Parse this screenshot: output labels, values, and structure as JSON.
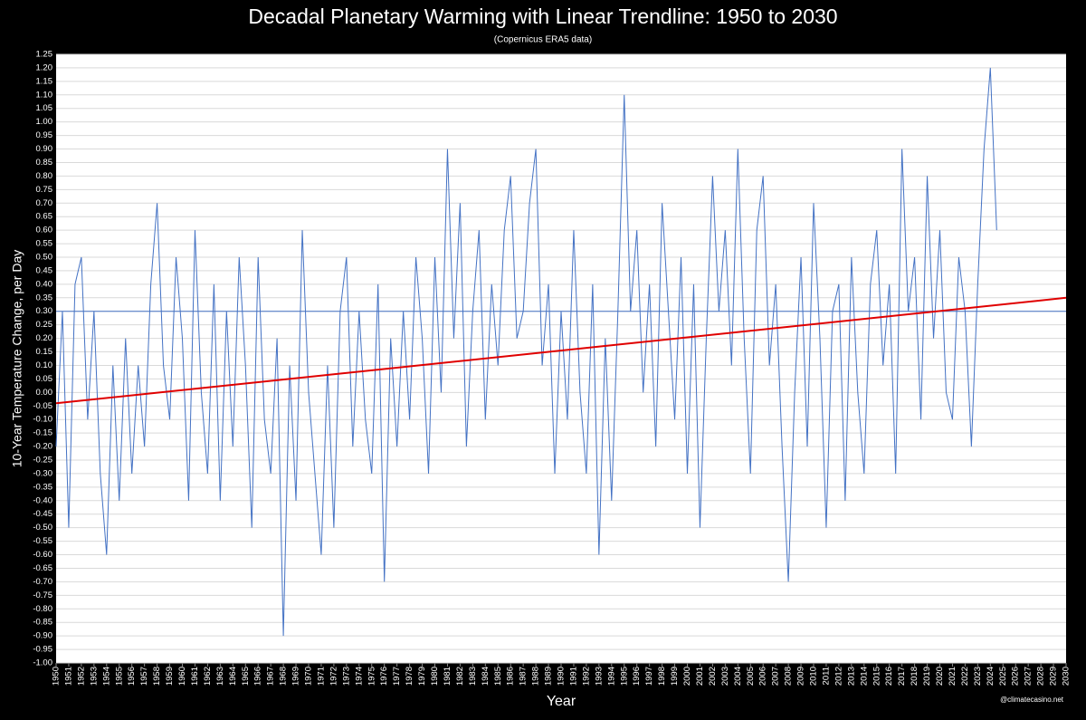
{
  "chart_data": {
    "type": "line",
    "title": "Decadal Planetary Warming with Linear Trendline: 1950 to 2030",
    "subtitle": "(Copernicus ERA5 data)",
    "x_label": "Year",
    "y_label": "10-Year Temperature Change, per Day",
    "credit": "@climatecasino.net",
    "grid": true,
    "xlim": [
      1950,
      2030
    ],
    "ylim": [
      -1.0,
      1.25
    ],
    "xticks": [
      1950,
      1951,
      1952,
      1953,
      1954,
      1955,
      1956,
      1957,
      1958,
      1959,
      1960,
      1961,
      1962,
      1963,
      1964,
      1965,
      1966,
      1967,
      1968,
      1969,
      1970,
      1971,
      1972,
      1973,
      1974,
      1975,
      1976,
      1977,
      1978,
      1979,
      1980,
      1981,
      1982,
      1983,
      1984,
      1985,
      1986,
      1987,
      1988,
      1989,
      1990,
      1991,
      1992,
      1993,
      1994,
      1995,
      1996,
      1997,
      1998,
      1999,
      2000,
      2001,
      2002,
      2003,
      2004,
      2005,
      2006,
      2007,
      2008,
      2009,
      2010,
      2011,
      2012,
      2013,
      2014,
      2015,
      2016,
      2017,
      2018,
      2019,
      2020,
      2021,
      2022,
      2023,
      2024,
      2025,
      2026,
      2027,
      2028,
      2029,
      2030
    ],
    "yticks": [
      {
        "value": -1.0,
        "label": "-1.00"
      },
      {
        "value": -0.95,
        "label": "-0.95"
      },
      {
        "value": -0.9,
        "label": "-0.90"
      },
      {
        "value": -0.85,
        "label": "-0.85"
      },
      {
        "value": -0.8,
        "label": "-0.80"
      },
      {
        "value": -0.75,
        "label": "-0.75"
      },
      {
        "value": -0.7,
        "label": "-0.70"
      },
      {
        "value": -0.65,
        "label": "-0.65"
      },
      {
        "value": -0.6,
        "label": "-0.60"
      },
      {
        "value": -0.55,
        "label": "-0.55"
      },
      {
        "value": -0.5,
        "label": "-0.50"
      },
      {
        "value": -0.45,
        "label": "-0.45"
      },
      {
        "value": -0.4,
        "label": "-0.40"
      },
      {
        "value": -0.35,
        "label": "-0.35"
      },
      {
        "value": -0.3,
        "label": "-0.30"
      },
      {
        "value": -0.25,
        "label": "-0.25"
      },
      {
        "value": -0.2,
        "label": "-0.20"
      },
      {
        "value": -0.15,
        "label": "-0.15"
      },
      {
        "value": -0.1,
        "label": "-0.10"
      },
      {
        "value": -0.05,
        "label": "-0.05"
      },
      {
        "value": 0,
        "label": "0.00"
      },
      {
        "value": 0.05,
        "label": "0.05"
      },
      {
        "value": 0.1,
        "label": "0.10"
      },
      {
        "value": 0.15,
        "label": "0.15"
      },
      {
        "value": 0.2,
        "label": "0.20"
      },
      {
        "value": 0.25,
        "label": "0.25"
      },
      {
        "value": 0.3,
        "label": "0.30"
      },
      {
        "value": 0.35,
        "label": "0.35"
      },
      {
        "value": 0.4,
        "label": "0.40"
      },
      {
        "value": 0.45,
        "label": "0.45"
      },
      {
        "value": 0.5,
        "label": "0.50"
      },
      {
        "value": 0.55,
        "label": "0.55"
      },
      {
        "value": 0.6,
        "label": "0.60"
      },
      {
        "value": 0.65,
        "label": "0.65"
      },
      {
        "value": 0.7,
        "label": "0.70"
      },
      {
        "value": 0.75,
        "label": "0.75"
      },
      {
        "value": 0.8,
        "label": "0.80"
      },
      {
        "value": 0.85,
        "label": "0.85"
      },
      {
        "value": 0.9,
        "label": "0.90"
      },
      {
        "value": 0.95,
        "label": "0.95"
      },
      {
        "value": 1.0,
        "label": "1.00"
      },
      {
        "value": 1.05,
        "label": "1.05"
      },
      {
        "value": 1.1,
        "label": "1.10"
      },
      {
        "value": 1.15,
        "label": "1.15"
      },
      {
        "value": 1.2,
        "label": "1.20"
      },
      {
        "value": 1.25,
        "label": "1.25"
      }
    ],
    "hlines": [
      {
        "value": 0.3,
        "color": "#4472c4"
      }
    ],
    "series": [
      {
        "color": "#4472c4",
        "x": [
          1950,
          1950.5,
          1951,
          1951.5,
          1952,
          1952.5,
          1953,
          1953.5,
          1954,
          1954.5,
          1955,
          1955.5,
          1956,
          1956.5,
          1957,
          1957.5,
          1958,
          1958.5,
          1959,
          1959.5,
          1960,
          1960.5,
          1961,
          1961.5,
          1962,
          1962.5,
          1963,
          1963.5,
          1964,
          1964.5,
          1965,
          1965.5,
          1966,
          1966.5,
          1967,
          1967.5,
          1968,
          1968.5,
          1969,
          1969.5,
          1970,
          1970.5,
          1971,
          1971.5,
          1972,
          1972.5,
          1973,
          1973.5,
          1974,
          1974.5,
          1975,
          1975.5,
          1976,
          1976.5,
          1977,
          1977.5,
          1978,
          1978.5,
          1979,
          1979.5,
          1980,
          1980.5,
          1981,
          1981.5,
          1982,
          1982.5,
          1983,
          1983.5,
          1984,
          1984.5,
          1985,
          1985.5,
          1986,
          1986.5,
          1987,
          1987.5,
          1988,
          1988.5,
          1989,
          1989.5,
          1990,
          1990.5,
          1991,
          1991.5,
          1992,
          1992.5,
          1993,
          1993.5,
          1994,
          1994.5,
          1995,
          1995.5,
          1996,
          1996.5,
          1997,
          1997.5,
          1998,
          1998.5,
          1999,
          1999.5,
          2000,
          2000.5,
          2001,
          2001.5,
          2002,
          2002.5,
          2003,
          2003.5,
          2004,
          2004.5,
          2005,
          2005.5,
          2006,
          2006.5,
          2007,
          2007.5,
          2008,
          2008.5,
          2009,
          2009.5,
          2010,
          2010.5,
          2011,
          2011.5,
          2012,
          2012.5,
          2013,
          2013.5,
          2014,
          2014.5,
          2015,
          2015.5,
          2016,
          2016.5,
          2017,
          2017.5,
          2018,
          2018.5,
          2019,
          2019.5,
          2020,
          2020.5,
          2021,
          2021.5,
          2022,
          2022.5,
          2023,
          2023.5,
          2024,
          2024.5
        ],
        "values": [
          -0.2,
          0.3,
          -0.5,
          0.4,
          0.5,
          -0.1,
          0.3,
          -0.3,
          -0.6,
          0.1,
          -0.4,
          0.2,
          -0.3,
          0.1,
          -0.2,
          0.4,
          0.7,
          0.1,
          -0.1,
          0.5,
          0.2,
          -0.4,
          0.6,
          0.0,
          -0.3,
          0.4,
          -0.4,
          0.3,
          -0.2,
          0.5,
          0.1,
          -0.5,
          0.5,
          -0.1,
          -0.3,
          0.2,
          -0.9,
          0.1,
          -0.4,
          0.6,
          0.0,
          -0.3,
          -0.6,
          0.1,
          -0.5,
          0.3,
          0.5,
          -0.2,
          0.3,
          -0.1,
          -0.3,
          0.4,
          -0.7,
          0.2,
          -0.2,
          0.3,
          -0.1,
          0.5,
          0.2,
          -0.3,
          0.5,
          0.0,
          0.9,
          0.2,
          0.7,
          -0.2,
          0.3,
          0.6,
          -0.1,
          0.4,
          0.1,
          0.6,
          0.8,
          0.2,
          0.3,
          0.7,
          0.9,
          0.1,
          0.4,
          -0.3,
          0.3,
          -0.1,
          0.6,
          0.0,
          -0.3,
          0.4,
          -0.6,
          0.2,
          -0.4,
          0.3,
          1.1,
          0.3,
          0.6,
          0.0,
          0.4,
          -0.2,
          0.7,
          0.3,
          -0.1,
          0.5,
          -0.3,
          0.4,
          -0.5,
          0.2,
          0.8,
          0.3,
          0.6,
          0.1,
          0.9,
          0.2,
          -0.3,
          0.6,
          0.8,
          0.1,
          0.4,
          -0.2,
          -0.7,
          0.0,
          0.5,
          -0.2,
          0.7,
          0.2,
          -0.5,
          0.3,
          0.4,
          -0.4,
          0.5,
          0.0,
          -0.3,
          0.4,
          0.6,
          0.1,
          0.4,
          -0.3,
          0.9,
          0.3,
          0.5,
          -0.1,
          0.8,
          0.2,
          0.6,
          0.0,
          -0.1,
          0.5,
          0.3,
          -0.2,
          0.4,
          0.9,
          1.2,
          0.6
        ]
      },
      {
        "color": "#e00000",
        "x": [
          1950,
          2030
        ],
        "values": [
          -0.04,
          0.35
        ]
      }
    ]
  }
}
